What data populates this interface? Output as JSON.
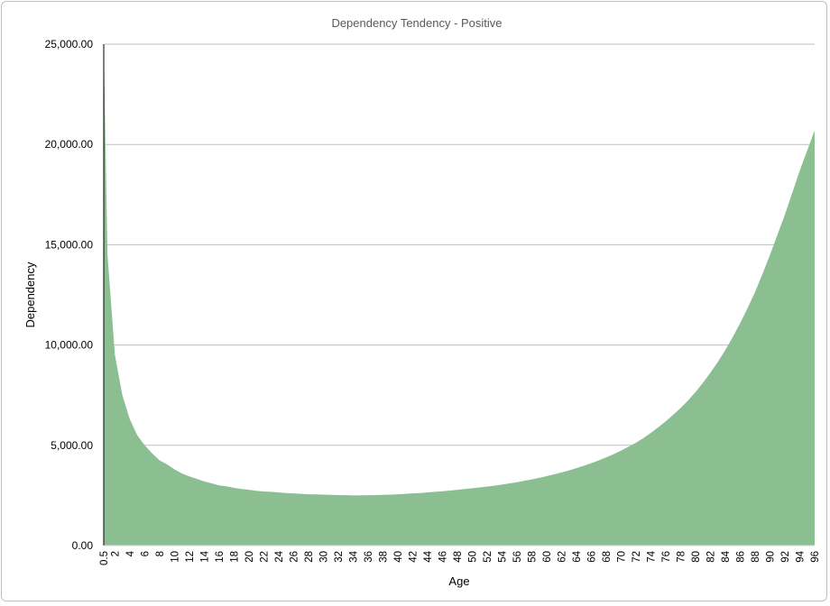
{
  "chart_data": {
    "type": "area",
    "title": "Dependency Tendency - Positive",
    "xlabel": "Age",
    "ylabel": "Dependency",
    "ylim": [
      0,
      25000
    ],
    "yticks": [
      "0.00",
      "5,000.00",
      "10,000.00",
      "15,000.00",
      "20,000.00",
      "25,000.00"
    ],
    "grid": true,
    "legend": "none",
    "fill_color": "#8bbf92",
    "x": [
      0.5,
      1,
      2,
      3,
      4,
      5,
      6,
      7,
      8,
      9,
      10,
      11,
      12,
      13,
      14,
      15,
      16,
      17,
      18,
      19,
      20,
      21,
      22,
      23,
      24,
      25,
      26,
      27,
      28,
      29,
      30,
      31,
      32,
      33,
      34,
      35,
      36,
      37,
      38,
      39,
      40,
      41,
      42,
      43,
      44,
      45,
      46,
      47,
      48,
      49,
      50,
      51,
      52,
      53,
      54,
      55,
      56,
      57,
      58,
      59,
      60,
      61,
      62,
      63,
      64,
      65,
      66,
      67,
      68,
      69,
      70,
      71,
      72,
      73,
      74,
      75,
      76,
      77,
      78,
      79,
      80,
      81,
      82,
      83,
      84,
      85,
      86,
      87,
      88,
      89,
      90,
      91,
      92,
      93,
      94,
      95,
      96
    ],
    "xtick_labels": [
      "0.5",
      "2",
      "4",
      "6",
      "8",
      "10",
      "12",
      "14",
      "16",
      "18",
      "20",
      "22",
      "24",
      "26",
      "28",
      "30",
      "32",
      "34",
      "36",
      "38",
      "40",
      "42",
      "44",
      "46",
      "48",
      "50",
      "52",
      "54",
      "56",
      "58",
      "60",
      "62",
      "64",
      "66",
      "68",
      "70",
      "72",
      "74",
      "76",
      "78",
      "80",
      "82",
      "84",
      "86",
      "88",
      "90",
      "92",
      "94",
      "96"
    ],
    "values": [
      25000,
      14500,
      9500,
      7500,
      6300,
      5500,
      5000,
      4600,
      4250,
      4050,
      3800,
      3600,
      3450,
      3330,
      3200,
      3100,
      3000,
      2950,
      2880,
      2820,
      2780,
      2730,
      2700,
      2680,
      2650,
      2620,
      2600,
      2580,
      2560,
      2550,
      2540,
      2530,
      2520,
      2510,
      2500,
      2505,
      2510,
      2520,
      2530,
      2540,
      2560,
      2580,
      2600,
      2620,
      2650,
      2680,
      2710,
      2740,
      2780,
      2820,
      2860,
      2900,
      2940,
      2990,
      3040,
      3100,
      3160,
      3230,
      3300,
      3380,
      3460,
      3550,
      3650,
      3750,
      3860,
      3980,
      4110,
      4250,
      4400,
      4560,
      4740,
      4930,
      5130,
      5360,
      5620,
      5900,
      6200,
      6520,
      6860,
      7240,
      7660,
      8120,
      8620,
      9160,
      9750,
      10400,
      11100,
      11850,
      12650,
      13550,
      14500,
      15500,
      16500,
      17600,
      18700,
      19700,
      20700
    ]
  }
}
